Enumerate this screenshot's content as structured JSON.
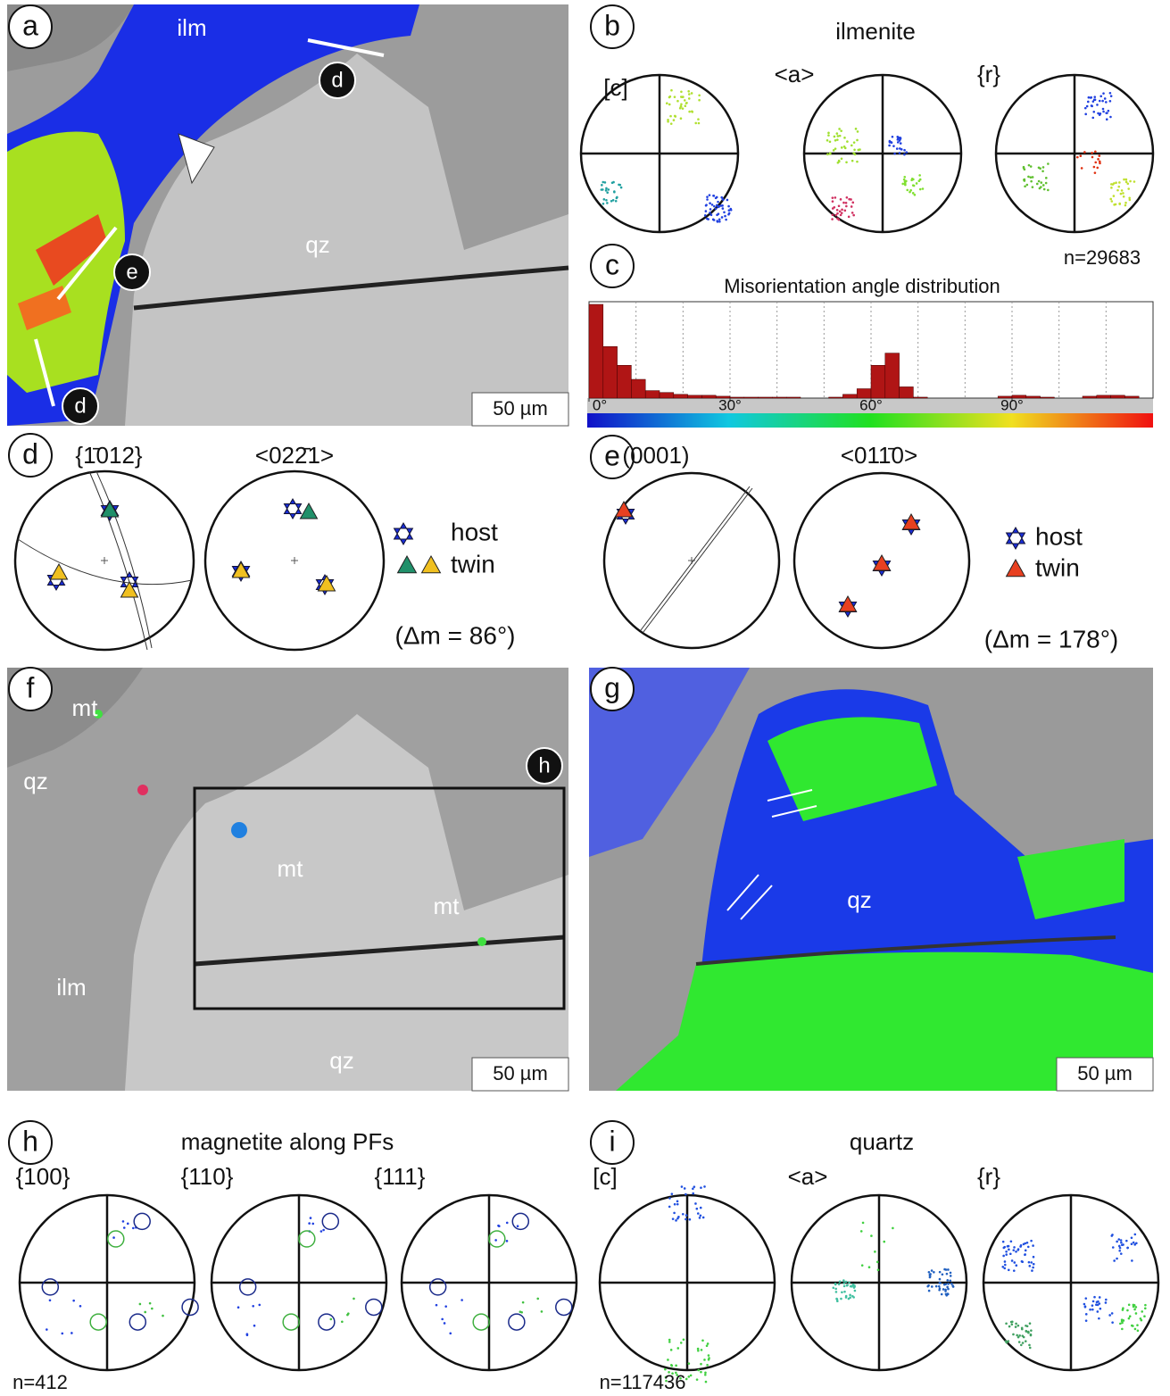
{
  "panel_labels": [
    "a",
    "b",
    "c",
    "d",
    "e",
    "f",
    "g",
    "h",
    "i"
  ],
  "a": {
    "ilm": "ilm",
    "qz": "qz",
    "markers": [
      "d",
      "e",
      "d"
    ],
    "scale": "50 µm"
  },
  "b": {
    "title": "ilmenite",
    "pole_figures": [
      "[c]",
      "<a>",
      "{r}"
    ],
    "n": "n=29683"
  },
  "chart_data": {
    "type": "histogram",
    "title": "Misorientation angle distribution",
    "bins": [
      0,
      3,
      6,
      9,
      12,
      15,
      18,
      21,
      24,
      27,
      30,
      33,
      36,
      39,
      42,
      45,
      48,
      51,
      54,
      57,
      60,
      63,
      66,
      69,
      72,
      75,
      78,
      81,
      84,
      87,
      90,
      93,
      96,
      99,
      102,
      105,
      108,
      111,
      114,
      117,
      120
    ],
    "values": [
      100,
      55,
      35,
      20,
      8,
      6,
      4,
      3,
      3,
      2,
      1,
      1,
      1,
      1,
      1,
      0,
      0,
      1,
      4,
      10,
      35,
      48,
      12,
      1,
      0,
      0,
      0,
      0,
      0,
      2,
      3,
      2,
      1,
      0,
      0,
      2,
      3,
      3,
      2,
      0
    ],
    "color": "#b01515",
    "xlim": [
      0,
      120
    ],
    "ylim": [
      0,
      100
    ],
    "xticks": [
      {
        "value": 0,
        "label": "0°"
      },
      {
        "value": 30,
        "label": "30°"
      },
      {
        "value": 60,
        "label": "60°"
      },
      {
        "value": 90,
        "label": "90°"
      }
    ],
    "xgrid": [
      10,
      20,
      30,
      40,
      50,
      60,
      70,
      80,
      90,
      100,
      110
    ]
  },
  "d": {
    "planes": "{1̄012}",
    "directions": "<022̄1>",
    "legend": [
      "host",
      "twin"
    ],
    "misorientation": "(Δm = 86°)"
  },
  "e": {
    "planes": "(0001)",
    "directions": "<011̄0>",
    "legend": [
      "host",
      "twin"
    ],
    "misorientation": "(Δm = 178°)"
  },
  "f": {
    "labels": [
      "mt",
      "qz",
      "mt",
      "mt",
      "ilm",
      "qz"
    ],
    "inset": "h",
    "scale": "50 µm"
  },
  "g": {
    "qz": "qz",
    "scale": "50 µm"
  },
  "h": {
    "title": "magnetite along PFs",
    "pole_figures": [
      "{100}",
      "{110}",
      "{111}"
    ],
    "n": "n=412"
  },
  "i": {
    "title": "quartz",
    "pole_figures": [
      "[c]",
      "<a>",
      "{r}"
    ],
    "n": "n=117436"
  }
}
